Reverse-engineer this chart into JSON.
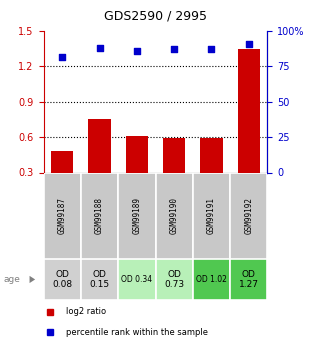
{
  "title": "GDS2590 / 2995",
  "samples": [
    "GSM99187",
    "GSM99188",
    "GSM99189",
    "GSM99190",
    "GSM99191",
    "GSM99192"
  ],
  "log2_ratio": [
    0.48,
    0.75,
    0.61,
    0.59,
    0.59,
    1.35
  ],
  "percentile_rank": [
    82,
    88,
    86,
    87,
    87,
    91
  ],
  "bar_color": "#cc0000",
  "dot_color": "#0000cc",
  "ylim_left": [
    0.3,
    1.5
  ],
  "ylim_right": [
    0,
    100
  ],
  "yticks_left": [
    0.3,
    0.6,
    0.9,
    1.2,
    1.5
  ],
  "yticks_right": [
    0,
    25,
    50,
    75,
    100
  ],
  "ytick_labels_right": [
    "0",
    "25",
    "50",
    "75",
    "100%"
  ],
  "grid_values": [
    0.6,
    0.9,
    1.2
  ],
  "annotation_row": [
    {
      "text": "OD\n0.08",
      "bg": "#d0d0d0",
      "fontsize": 6.5,
      "small": false
    },
    {
      "text": "OD\n0.15",
      "bg": "#d0d0d0",
      "fontsize": 6.5,
      "small": false
    },
    {
      "text": "OD 0.34",
      "bg": "#b8f0b8",
      "fontsize": 5.5,
      "small": true
    },
    {
      "text": "OD\n0.73",
      "bg": "#b8f0b8",
      "fontsize": 6.5,
      "small": false
    },
    {
      "text": "OD 1.02",
      "bg": "#50c850",
      "fontsize": 5.5,
      "small": true
    },
    {
      "text": "OD\n1.27",
      "bg": "#50c850",
      "fontsize": 6.5,
      "small": false
    }
  ],
  "age_label": "age",
  "legend_bar_label": "log2 ratio",
  "legend_dot_label": "percentile rank within the sample",
  "title_fontsize": 9,
  "axis_label_color_left": "#cc0000",
  "axis_label_color_right": "#0000cc"
}
